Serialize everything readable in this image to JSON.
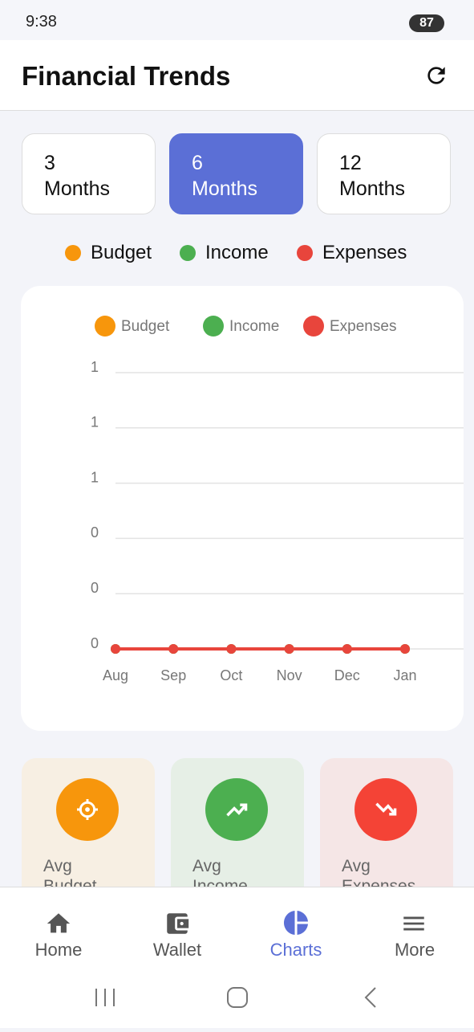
{
  "status_bar": {
    "time": "9:38",
    "battery": "87"
  },
  "header": {
    "title": "Financial Trends"
  },
  "periods": [
    {
      "number": "3",
      "unit": "Months"
    },
    {
      "number": "6",
      "unit": "Months",
      "selected": true
    },
    {
      "number": "12",
      "unit": "Months"
    }
  ],
  "chart_data": {
    "type": "line",
    "categories": [
      "Aug",
      "Sep",
      "Oct",
      "Nov",
      "Dec",
      "Jan"
    ],
    "series": [
      {
        "name": "Budget",
        "color": "#f7960c",
        "values": [
          0,
          0,
          0,
          0,
          0,
          0
        ]
      },
      {
        "name": "Income",
        "color": "#4caf50",
        "values": [
          0,
          0,
          0,
          0,
          0,
          0
        ]
      },
      {
        "name": "Expenses",
        "color": "#e8453c",
        "values": [
          0,
          0,
          0,
          0,
          0,
          0
        ]
      }
    ],
    "ylim": [
      0,
      1
    ],
    "yticks": [
      0,
      {
        "value": 0.2,
        "label": "0"
      },
      {
        "value": 0.4,
        "label": "0"
      },
      {
        "value": 0.6,
        "label": "1"
      },
      {
        "value": 0.8,
        "label": "1"
      },
      1
    ],
    "grid": true,
    "legend": "top"
  },
  "stats": [
    {
      "label": "Avg Budget",
      "color": "#f7960c",
      "bg": "#f7efe3"
    },
    {
      "label": "Avg Income",
      "color": "#4caf50",
      "bg": "#e6efe6"
    },
    {
      "label": "Avg Expenses",
      "color": "#f44336",
      "bg": "#f5e6e6"
    }
  ],
  "nav": [
    {
      "label": "Home"
    },
    {
      "label": "Wallet"
    },
    {
      "label": "Charts",
      "active": true
    },
    {
      "label": "More"
    }
  ]
}
